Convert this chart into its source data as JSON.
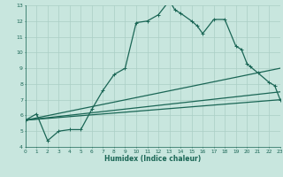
{
  "xlabel": "Humidex (Indice chaleur)",
  "bg_color": "#c8e6de",
  "grid_color": "#aacfc5",
  "line_color": "#1a6655",
  "xlim": [
    0,
    23
  ],
  "ylim": [
    4,
    13
  ],
  "yticks": [
    4,
    5,
    6,
    7,
    8,
    9,
    10,
    11,
    12,
    13
  ],
  "xticks": [
    0,
    1,
    2,
    3,
    4,
    5,
    6,
    7,
    8,
    9,
    10,
    11,
    12,
    13,
    14,
    15,
    16,
    17,
    18,
    19,
    20,
    21,
    22,
    23
  ],
  "main_line": [
    [
      0,
      5.7
    ],
    [
      1,
      6.1
    ],
    [
      2,
      4.4
    ],
    [
      3,
      5.0
    ],
    [
      4,
      5.1
    ],
    [
      5,
      5.1
    ],
    [
      6,
      6.4
    ],
    [
      7,
      7.6
    ],
    [
      8,
      8.6
    ],
    [
      9,
      9.0
    ],
    [
      10,
      11.9
    ],
    [
      11,
      12.0
    ],
    [
      12,
      12.4
    ],
    [
      13,
      13.3
    ],
    [
      13.5,
      12.7
    ],
    [
      14,
      12.5
    ],
    [
      15,
      12.0
    ],
    [
      15.5,
      11.7
    ],
    [
      16,
      11.2
    ],
    [
      17,
      12.1
    ],
    [
      18,
      12.1
    ],
    [
      19,
      10.4
    ],
    [
      19.5,
      10.2
    ],
    [
      20,
      9.3
    ],
    [
      20.3,
      9.1
    ],
    [
      21,
      8.7
    ],
    [
      22,
      8.1
    ],
    [
      22.5,
      7.9
    ],
    [
      23,
      7.0
    ]
  ],
  "lower_line1": [
    [
      0,
      5.7
    ],
    [
      23,
      7.0
    ]
  ],
  "lower_line2": [
    [
      0,
      5.7
    ],
    [
      23,
      7.5
    ]
  ],
  "lower_line3": [
    [
      0,
      5.7
    ],
    [
      23,
      9.0
    ]
  ]
}
